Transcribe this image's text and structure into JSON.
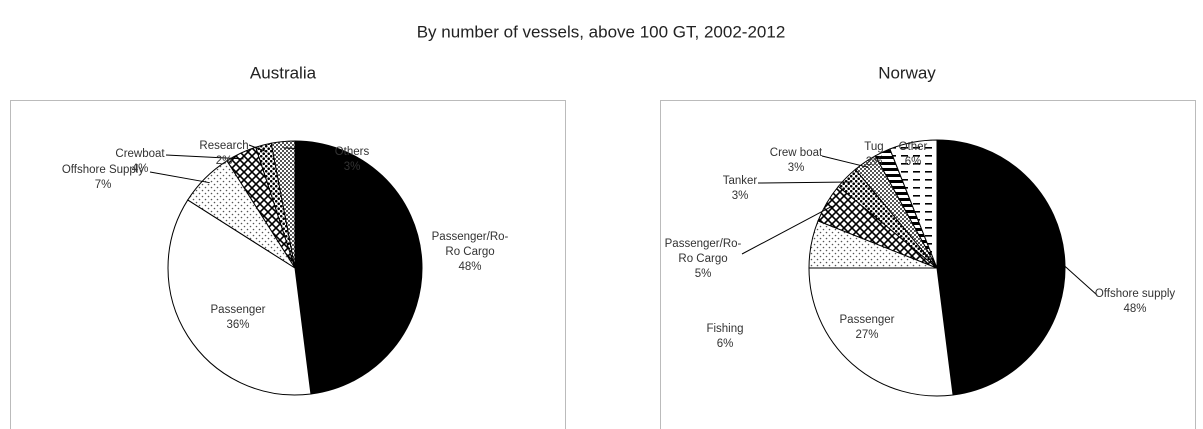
{
  "title": "By number of vessels, above 100 GT, 2002-2012",
  "chart_data": [
    {
      "type": "pie",
      "title": "Australia",
      "categories": [
        "Passenger/Ro-Ro Cargo",
        "Passenger",
        "Offshore Supply",
        "Crewboat",
        "Research",
        "Others"
      ],
      "values": [
        48,
        36,
        7,
        4,
        2,
        3
      ],
      "value_labels": [
        "48%",
        "36%",
        "7%",
        "4%",
        "2%",
        "3%"
      ]
    },
    {
      "type": "pie",
      "title": "Norway",
      "categories": [
        "Offshore supply",
        "Passenger",
        "Fishing",
        "Passenger/Ro-Ro Cargo",
        "Tanker",
        "Crew boat",
        "Tug",
        "Other"
      ],
      "values": [
        48,
        27,
        6,
        5,
        3,
        3,
        2,
        6
      ],
      "value_labels": [
        "48%",
        "27%",
        "6%",
        "5%",
        "3%",
        "3%",
        "2%",
        "6%"
      ]
    }
  ]
}
